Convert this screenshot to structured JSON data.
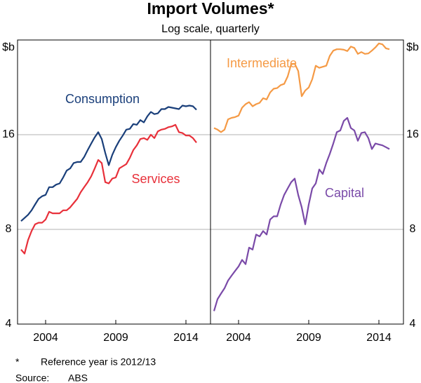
{
  "title": "Import Volumes*",
  "subtitle": "Log scale, quarterly",
  "footnote": {
    "marker": "*",
    "text": "Reference year is 2012/13"
  },
  "source": {
    "label": "Source:",
    "text": "ABS"
  },
  "chart_data": [
    {
      "type": "line",
      "ylabel": "$b",
      "log_scale": true,
      "grid": true,
      "y_axis_side": "left",
      "xlim": [
        2002,
        2015.75
      ],
      "xticks": [
        2004,
        2009,
        2014
      ],
      "ylim": [
        4,
        32
      ],
      "yticks": [
        4,
        8,
        16
      ],
      "x": [
        2002.25,
        2002.5,
        2002.75,
        2003,
        2003.25,
        2003.5,
        2003.75,
        2004,
        2004.25,
        2004.5,
        2004.75,
        2005,
        2005.25,
        2005.5,
        2005.75,
        2006,
        2006.25,
        2006.5,
        2006.75,
        2007,
        2007.25,
        2007.5,
        2007.75,
        2008,
        2008.25,
        2008.5,
        2008.75,
        2009,
        2009.25,
        2009.5,
        2009.75,
        2010,
        2010.25,
        2010.5,
        2010.75,
        2011,
        2011.25,
        2011.5,
        2011.75,
        2012,
        2012.25,
        2012.5,
        2012.75,
        2013,
        2013.25,
        2013.5,
        2013.75,
        2014,
        2014.25,
        2014.5,
        2014.75
      ],
      "series": [
        {
          "name": "Consumption",
          "color": "#1a3f7a",
          "values": [
            8.5,
            8.7,
            8.9,
            9.2,
            9.6,
            10.0,
            10.2,
            10.3,
            10.9,
            10.9,
            11.1,
            11.2,
            11.7,
            12.3,
            12.5,
            13.0,
            13.1,
            13.1,
            13.6,
            14.3,
            15.0,
            15.7,
            16.3,
            15.5,
            14.0,
            12.8,
            13.8,
            14.6,
            15.3,
            15.9,
            16.6,
            16.7,
            17.3,
            17.2,
            17.8,
            17.5,
            18.3,
            18.9,
            18.6,
            18.7,
            19.3,
            19.3,
            19.6,
            19.5,
            19.4,
            19.3,
            19.8,
            19.7,
            19.8,
            19.7,
            19.2
          ]
        },
        {
          "name": "Services",
          "color": "#e8303a",
          "values": [
            6.9,
            6.7,
            7.4,
            7.9,
            8.3,
            8.4,
            8.4,
            8.6,
            9.1,
            9.0,
            9.0,
            9.0,
            9.2,
            9.2,
            9.4,
            9.7,
            10.0,
            10.5,
            10.9,
            11.3,
            11.8,
            12.5,
            13.3,
            13.0,
            11.3,
            11.2,
            11.6,
            11.7,
            12.5,
            12.7,
            12.9,
            13.5,
            14.3,
            14.8,
            15.5,
            15.6,
            15.4,
            16.0,
            15.6,
            16.4,
            16.6,
            16.7,
            16.9,
            17.0,
            17.2,
            16.3,
            16.2,
            15.9,
            15.9,
            15.6,
            15.1
          ]
        }
      ]
    },
    {
      "type": "line",
      "ylabel": "$b",
      "log_scale": true,
      "grid": true,
      "y_axis_side": "right",
      "xlim": [
        2002,
        2015.75
      ],
      "xticks": [
        2004,
        2009,
        2014
      ],
      "ylim": [
        4,
        32
      ],
      "yticks": [
        4,
        8,
        16
      ],
      "x": [
        2002.25,
        2002.5,
        2002.75,
        2003,
        2003.25,
        2003.5,
        2003.75,
        2004,
        2004.25,
        2004.5,
        2004.75,
        2005,
        2005.25,
        2005.5,
        2005.75,
        2006,
        2006.25,
        2006.5,
        2006.75,
        2007,
        2007.25,
        2007.5,
        2007.75,
        2008,
        2008.25,
        2008.5,
        2008.75,
        2009,
        2009.25,
        2009.5,
        2009.75,
        2010,
        2010.25,
        2010.5,
        2010.75,
        2011,
        2011.25,
        2011.5,
        2011.75,
        2012,
        2012.25,
        2012.5,
        2012.75,
        2013,
        2013.25,
        2013.5,
        2013.75,
        2014,
        2014.25,
        2014.5,
        2014.75
      ],
      "series": [
        {
          "name": "Intermediate",
          "color": "#f59a45",
          "values": [
            16.8,
            16.6,
            16.3,
            16.6,
            17.9,
            18.1,
            18.2,
            18.4,
            19.5,
            20.0,
            20.3,
            19.7,
            20.0,
            20.2,
            20.9,
            20.7,
            21.8,
            22.4,
            22.5,
            23.0,
            23.2,
            24.5,
            26.8,
            26.9,
            25.5,
            21.2,
            22.1,
            22.6,
            24.0,
            26.5,
            26.1,
            26.3,
            26.5,
            28.5,
            29.6,
            29.9,
            29.9,
            29.8,
            29.5,
            30.5,
            30.2,
            28.9,
            29.3,
            28.9,
            29.0,
            29.6,
            30.3,
            31.2,
            31.0,
            30.1,
            29.9
          ]
        },
        {
          "name": "Capital",
          "color": "#7a4aa8",
          "values": [
            4.4,
            4.8,
            5.0,
            5.2,
            5.5,
            5.7,
            5.9,
            6.1,
            6.4,
            6.2,
            7.0,
            6.9,
            7.7,
            7.6,
            7.9,
            7.7,
            8.6,
            8.8,
            8.8,
            9.6,
            10.3,
            10.8,
            11.3,
            11.6,
            10.3,
            9.4,
            8.3,
            9.6,
            10.8,
            11.2,
            12.4,
            12.0,
            13.0,
            13.9,
            15.0,
            16.3,
            16.5,
            17.7,
            18.1,
            16.8,
            16.5,
            15.3,
            16.2,
            16.3,
            15.6,
            14.4,
            15.0,
            14.9,
            14.8,
            14.6,
            14.4
          ]
        }
      ]
    }
  ]
}
